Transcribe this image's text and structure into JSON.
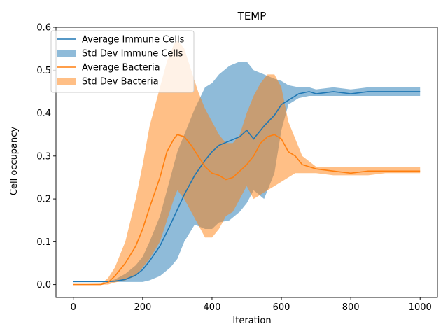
{
  "chart_data": {
    "type": "line",
    "title": "TEMP",
    "xlabel": "Iteration",
    "ylabel": "Cell occupancy",
    "xlim": [
      -50,
      1050
    ],
    "ylim": [
      -0.03,
      0.6
    ],
    "xticks": [
      0,
      200,
      400,
      600,
      800,
      1000
    ],
    "xtick_labels": [
      "0",
      "200",
      "400",
      "600",
      "800",
      "1000"
    ],
    "yticks": [
      0.0,
      0.1,
      0.2,
      0.3,
      0.4,
      0.5,
      0.6
    ],
    "ytick_labels": [
      "0.0",
      "0.1",
      "0.2",
      "0.3",
      "0.4",
      "0.5",
      "0.6"
    ],
    "grid": false,
    "legend_position": "top-left",
    "legend": [
      "Average Immune Cells",
      "Std Dev Immune Cells",
      "Average Bacteria",
      "Std Dev Bacteria"
    ],
    "series": [
      {
        "name": "Average Immune Cells",
        "color": "#1f77b4",
        "x": [
          0,
          100,
          120,
          150,
          180,
          200,
          220,
          250,
          280,
          300,
          320,
          350,
          380,
          400,
          420,
          450,
          480,
          500,
          520,
          550,
          580,
          600,
          620,
          650,
          680,
          700,
          750,
          800,
          850,
          900,
          950,
          1000
        ],
        "mean": [
          0.007,
          0.007,
          0.008,
          0.012,
          0.022,
          0.035,
          0.055,
          0.09,
          0.14,
          0.175,
          0.21,
          0.255,
          0.29,
          0.31,
          0.325,
          0.335,
          0.345,
          0.36,
          0.34,
          0.37,
          0.395,
          0.42,
          0.43,
          0.445,
          0.45,
          0.445,
          0.45,
          0.445,
          0.45,
          0.45,
          0.45,
          0.45
        ],
        "lower": [
          0.007,
          0.006,
          0.006,
          0.006,
          0.006,
          0.006,
          0.01,
          0.02,
          0.04,
          0.06,
          0.1,
          0.14,
          0.13,
          0.13,
          0.145,
          0.15,
          0.17,
          0.19,
          0.22,
          0.2,
          0.26,
          0.36,
          0.42,
          0.435,
          0.44,
          0.44,
          0.44,
          0.44,
          0.44,
          0.44,
          0.44,
          0.44
        ],
        "upper": [
          0.007,
          0.008,
          0.012,
          0.025,
          0.045,
          0.065,
          0.1,
          0.16,
          0.25,
          0.31,
          0.35,
          0.41,
          0.46,
          0.47,
          0.49,
          0.51,
          0.52,
          0.52,
          0.5,
          0.49,
          0.48,
          0.475,
          0.465,
          0.46,
          0.46,
          0.455,
          0.46,
          0.455,
          0.46,
          0.46,
          0.46,
          0.46
        ]
      },
      {
        "name": "Average Bacteria",
        "color": "#ff7f0e",
        "x": [
          0,
          80,
          100,
          120,
          150,
          180,
          200,
          220,
          250,
          270,
          290,
          300,
          320,
          340,
          360,
          380,
          400,
          420,
          440,
          460,
          480,
          500,
          520,
          540,
          560,
          580,
          600,
          620,
          640,
          660,
          700,
          750,
          800,
          850,
          900,
          950,
          1000
        ],
        "mean": [
          0.0,
          0.0,
          0.005,
          0.02,
          0.05,
          0.09,
          0.13,
          0.18,
          0.25,
          0.31,
          0.34,
          0.35,
          0.345,
          0.325,
          0.3,
          0.275,
          0.26,
          0.255,
          0.245,
          0.25,
          0.265,
          0.28,
          0.3,
          0.33,
          0.345,
          0.35,
          0.34,
          0.31,
          0.3,
          0.28,
          0.27,
          0.265,
          0.26,
          0.265,
          0.265,
          0.265,
          0.265
        ],
        "lower": [
          0.0,
          0.0,
          0.0,
          0.005,
          0.01,
          0.02,
          0.04,
          0.06,
          0.1,
          0.15,
          0.2,
          0.22,
          0.2,
          0.17,
          0.14,
          0.11,
          0.11,
          0.13,
          0.16,
          0.17,
          0.2,
          0.23,
          0.2,
          0.21,
          0.22,
          0.23,
          0.24,
          0.25,
          0.26,
          0.26,
          0.26,
          0.255,
          0.255,
          0.255,
          0.26,
          0.26,
          0.26
        ],
        "upper": [
          0.0,
          0.002,
          0.015,
          0.04,
          0.1,
          0.2,
          0.28,
          0.37,
          0.46,
          0.52,
          0.56,
          0.57,
          0.55,
          0.5,
          0.45,
          0.41,
          0.38,
          0.35,
          0.33,
          0.33,
          0.35,
          0.4,
          0.44,
          0.47,
          0.49,
          0.49,
          0.46,
          0.38,
          0.34,
          0.3,
          0.275,
          0.275,
          0.275,
          0.275,
          0.275,
          0.275,
          0.275
        ]
      }
    ]
  }
}
